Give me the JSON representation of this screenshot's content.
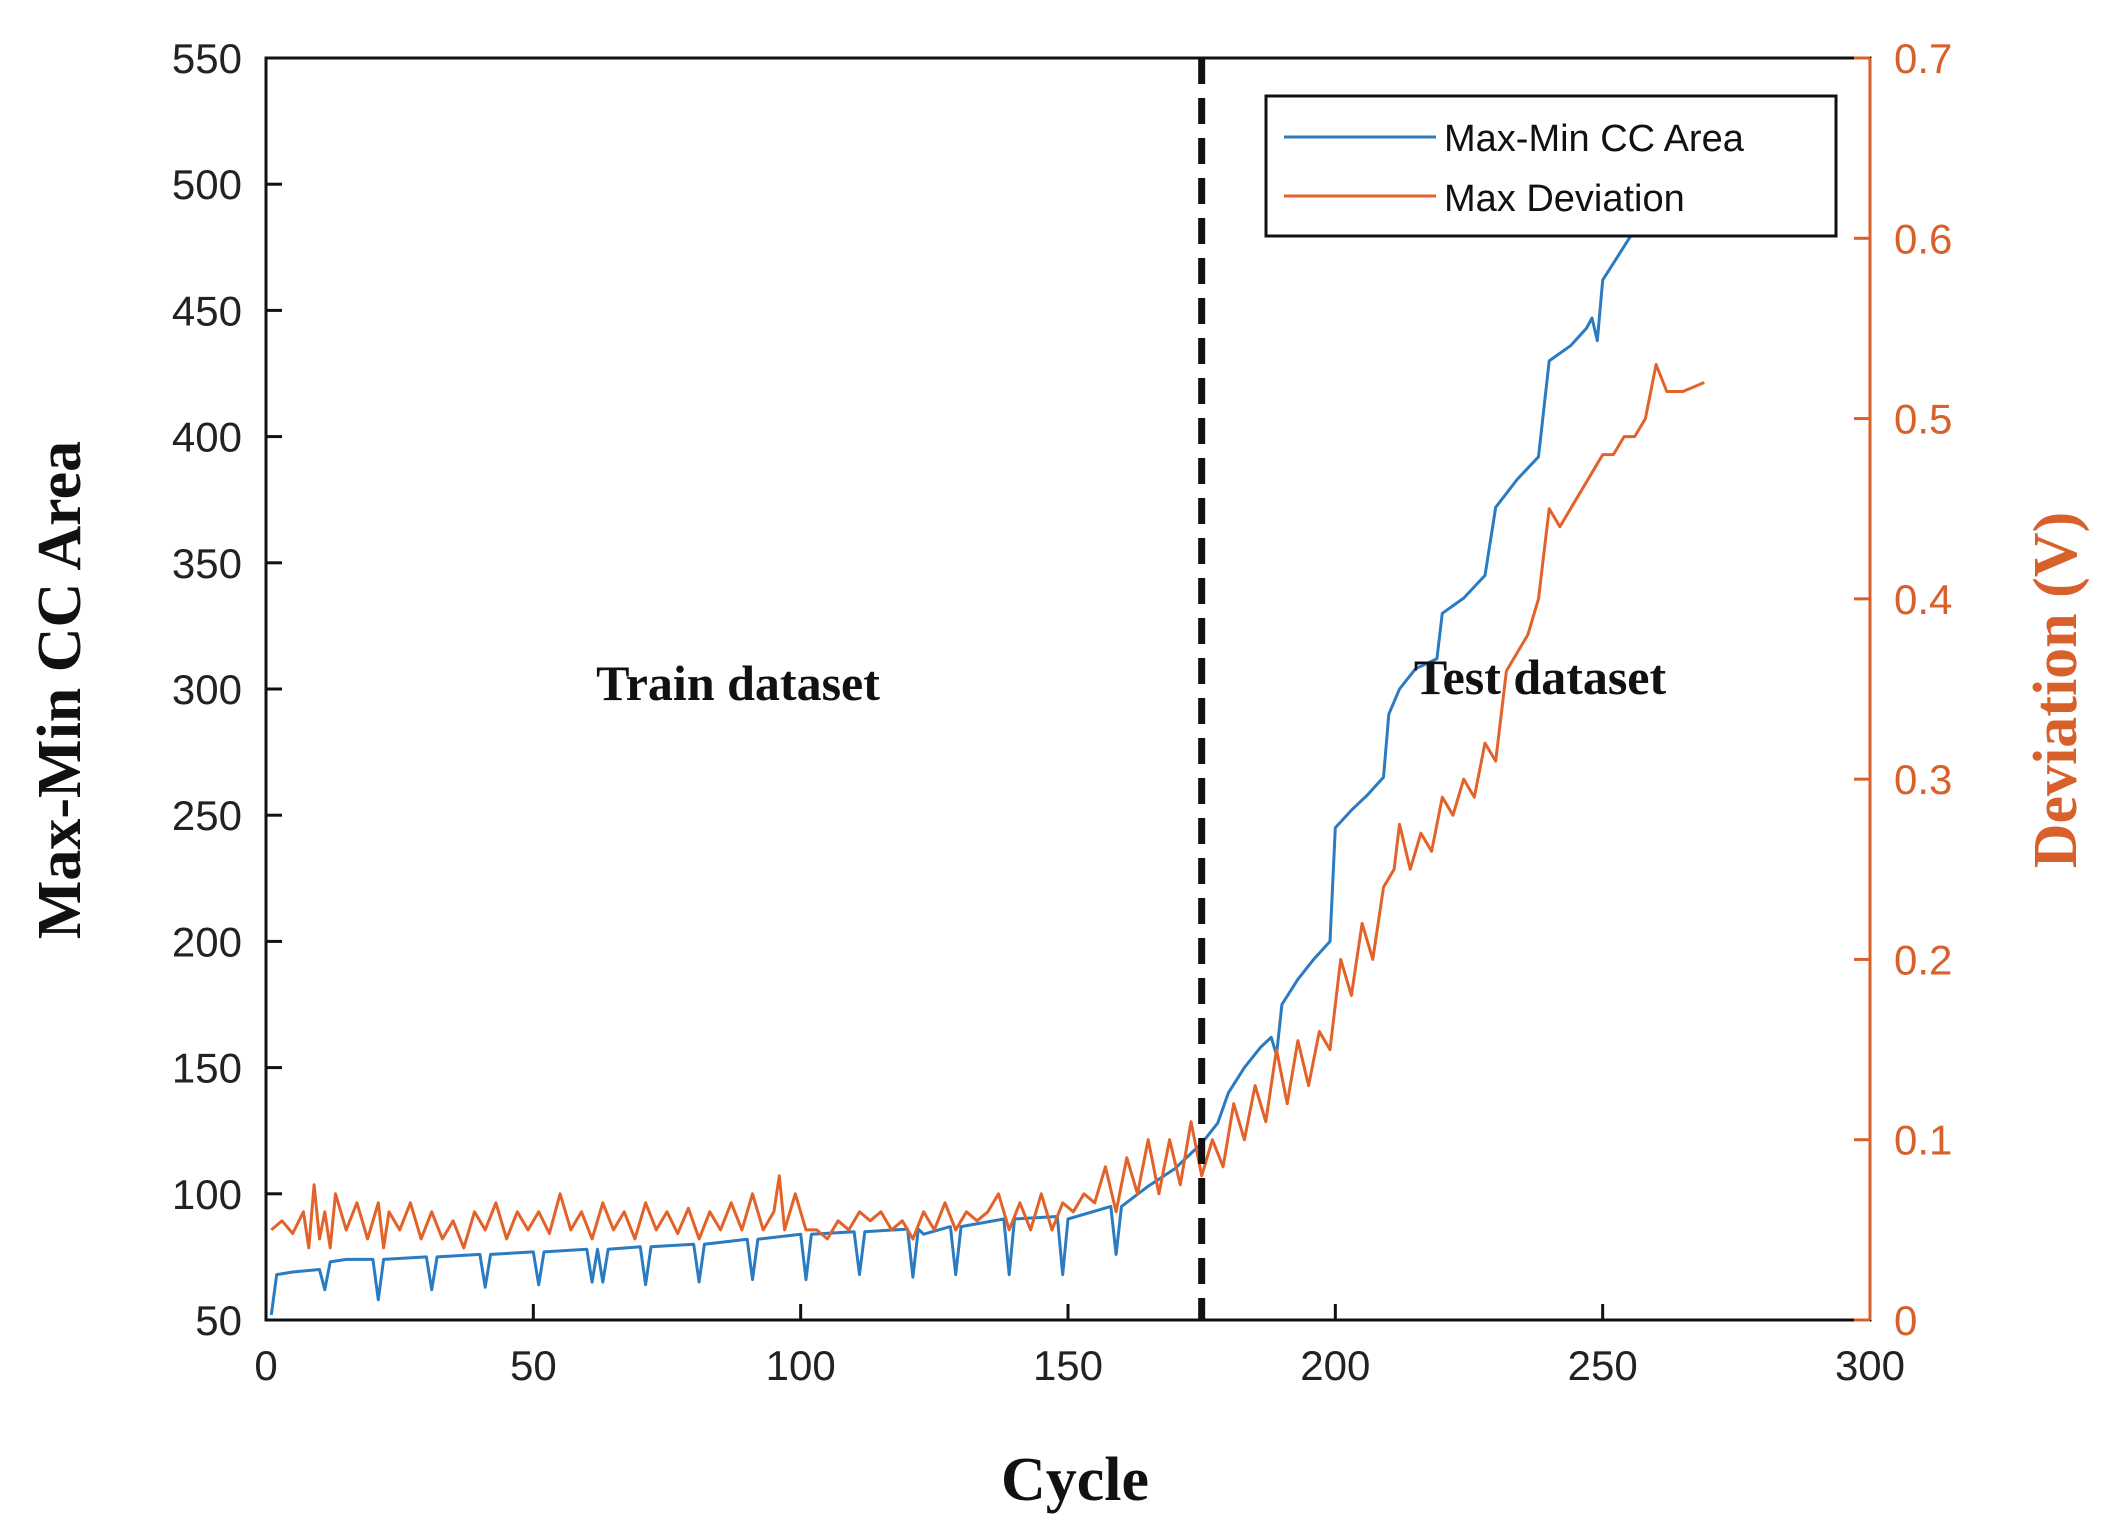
{
  "chart_data": {
    "type": "line",
    "title": "",
    "xlabel": "Cycle",
    "ylabel_left": "Max-Min CC Area",
    "ylabel_right": "Deviation (V)",
    "xlim": [
      0,
      300
    ],
    "ylim_left": [
      50,
      550
    ],
    "ylim_right": [
      0,
      0.7
    ],
    "x_ticks": [
      0,
      50,
      100,
      150,
      200,
      250,
      300
    ],
    "y_left_ticks": [
      50,
      100,
      150,
      200,
      250,
      300,
      350,
      400,
      450,
      500,
      550
    ],
    "y_right_ticks": [
      0,
      0.1,
      0.2,
      0.3,
      0.4,
      0.5,
      0.6,
      0.7
    ],
    "y_right_tick_labels": [
      "0",
      "0.1",
      "0.2",
      "0.3",
      "0.4",
      "0.5",
      "0.6",
      "0.7"
    ],
    "split_line": {
      "x": 175,
      "style": "dashed",
      "color": "#111111"
    },
    "annotations": [
      {
        "text": "Train dataset",
        "x": 88,
        "y": 300,
        "axis": "left"
      },
      {
        "text": "Test dataset",
        "x": 238,
        "y": 303,
        "axis": "left"
      }
    ],
    "legend": {
      "position": "top-right",
      "entries": [
        "Max-Min CC Area",
        "Max Deviation"
      ]
    },
    "series": [
      {
        "name": "Max-Min CC Area",
        "axis": "left",
        "color": "#2a7bc1",
        "points": [
          [
            1,
            52
          ],
          [
            2,
            68
          ],
          [
            5,
            69
          ],
          [
            10,
            70
          ],
          [
            11,
            62
          ],
          [
            12,
            73
          ],
          [
            15,
            74
          ],
          [
            20,
            74
          ],
          [
            21,
            58
          ],
          [
            22,
            74
          ],
          [
            30,
            75
          ],
          [
            31,
            62
          ],
          [
            32,
            75
          ],
          [
            40,
            76
          ],
          [
            41,
            63
          ],
          [
            42,
            76
          ],
          [
            50,
            77
          ],
          [
            51,
            64
          ],
          [
            52,
            77
          ],
          [
            60,
            78
          ],
          [
            61,
            65
          ],
          [
            62,
            78
          ],
          [
            63,
            65
          ],
          [
            64,
            78
          ],
          [
            70,
            79
          ],
          [
            71,
            64
          ],
          [
            72,
            79
          ],
          [
            80,
            80
          ],
          [
            81,
            65
          ],
          [
            82,
            80
          ],
          [
            90,
            82
          ],
          [
            91,
            66
          ],
          [
            92,
            82
          ],
          [
            100,
            84
          ],
          [
            101,
            66
          ],
          [
            102,
            84
          ],
          [
            110,
            85
          ],
          [
            111,
            68
          ],
          [
            112,
            85
          ],
          [
            120,
            86
          ],
          [
            121,
            67
          ],
          [
            122,
            86
          ],
          [
            123,
            84
          ],
          [
            128,
            87
          ],
          [
            129,
            68
          ],
          [
            130,
            87
          ],
          [
            138,
            90
          ],
          [
            139,
            68
          ],
          [
            140,
            90
          ],
          [
            148,
            91
          ],
          [
            149,
            68
          ],
          [
            150,
            90
          ],
          [
            158,
            95
          ],
          [
            159,
            76
          ],
          [
            160,
            95
          ],
          [
            165,
            103
          ],
          [
            170,
            110
          ],
          [
            175,
            120
          ],
          [
            178,
            128
          ],
          [
            180,
            140
          ],
          [
            183,
            150
          ],
          [
            186,
            158
          ],
          [
            188,
            162
          ],
          [
            189,
            155
          ],
          [
            190,
            175
          ],
          [
            193,
            185
          ],
          [
            196,
            193
          ],
          [
            199,
            200
          ],
          [
            200,
            245
          ],
          [
            203,
            252
          ],
          [
            206,
            258
          ],
          [
            209,
            265
          ],
          [
            210,
            290
          ],
          [
            212,
            300
          ],
          [
            215,
            308
          ],
          [
            219,
            312
          ],
          [
            220,
            330
          ],
          [
            224,
            336
          ],
          [
            228,
            345
          ],
          [
            230,
            372
          ],
          [
            234,
            383
          ],
          [
            238,
            392
          ],
          [
            240,
            430
          ],
          [
            244,
            436
          ],
          [
            247,
            443
          ],
          [
            248,
            447
          ],
          [
            249,
            438
          ],
          [
            250,
            462
          ],
          [
            253,
            472
          ],
          [
            256,
            482
          ]
        ]
      },
      {
        "name": "Max Deviation",
        "axis": "right",
        "color": "#e2622a",
        "points": [
          [
            1,
            0.05
          ],
          [
            3,
            0.055
          ],
          [
            5,
            0.048
          ],
          [
            7,
            0.06
          ],
          [
            8,
            0.04
          ],
          [
            9,
            0.075
          ],
          [
            10,
            0.045
          ],
          [
            11,
            0.06
          ],
          [
            12,
            0.04
          ],
          [
            13,
            0.07
          ],
          [
            15,
            0.05
          ],
          [
            17,
            0.065
          ],
          [
            19,
            0.045
          ],
          [
            21,
            0.065
          ],
          [
            22,
            0.04
          ],
          [
            23,
            0.06
          ],
          [
            25,
            0.05
          ],
          [
            27,
            0.065
          ],
          [
            29,
            0.045
          ],
          [
            31,
            0.06
          ],
          [
            33,
            0.045
          ],
          [
            35,
            0.055
          ],
          [
            37,
            0.04
          ],
          [
            39,
            0.06
          ],
          [
            41,
            0.05
          ],
          [
            43,
            0.065
          ],
          [
            45,
            0.045
          ],
          [
            47,
            0.06
          ],
          [
            49,
            0.05
          ],
          [
            51,
            0.06
          ],
          [
            53,
            0.048
          ],
          [
            55,
            0.07
          ],
          [
            57,
            0.05
          ],
          [
            59,
            0.06
          ],
          [
            61,
            0.045
          ],
          [
            63,
            0.065
          ],
          [
            65,
            0.05
          ],
          [
            67,
            0.06
          ],
          [
            69,
            0.045
          ],
          [
            71,
            0.065
          ],
          [
            73,
            0.05
          ],
          [
            75,
            0.06
          ],
          [
            77,
            0.048
          ],
          [
            79,
            0.062
          ],
          [
            81,
            0.045
          ],
          [
            83,
            0.06
          ],
          [
            85,
            0.05
          ],
          [
            87,
            0.065
          ],
          [
            89,
            0.05
          ],
          [
            91,
            0.07
          ],
          [
            93,
            0.05
          ],
          [
            95,
            0.06
          ],
          [
            96,
            0.08
          ],
          [
            97,
            0.05
          ],
          [
            99,
            0.07
          ],
          [
            101,
            0.05
          ],
          [
            103,
            0.05
          ],
          [
            105,
            0.045
          ],
          [
            107,
            0.055
          ],
          [
            109,
            0.05
          ],
          [
            111,
            0.06
          ],
          [
            113,
            0.055
          ],
          [
            115,
            0.06
          ],
          [
            117,
            0.05
          ],
          [
            119,
            0.055
          ],
          [
            121,
            0.045
          ],
          [
            123,
            0.06
          ],
          [
            125,
            0.05
          ],
          [
            127,
            0.065
          ],
          [
            129,
            0.05
          ],
          [
            131,
            0.06
          ],
          [
            133,
            0.055
          ],
          [
            135,
            0.06
          ],
          [
            137,
            0.07
          ],
          [
            139,
            0.05
          ],
          [
            141,
            0.065
          ],
          [
            143,
            0.05
          ],
          [
            145,
            0.07
          ],
          [
            147,
            0.05
          ],
          [
            149,
            0.065
          ],
          [
            151,
            0.06
          ],
          [
            153,
            0.07
          ],
          [
            155,
            0.065
          ],
          [
            157,
            0.085
          ],
          [
            159,
            0.06
          ],
          [
            161,
            0.09
          ],
          [
            163,
            0.07
          ],
          [
            165,
            0.1
          ],
          [
            167,
            0.07
          ],
          [
            169,
            0.1
          ],
          [
            171,
            0.075
          ],
          [
            173,
            0.11
          ],
          [
            175,
            0.08
          ],
          [
            177,
            0.1
          ],
          [
            179,
            0.085
          ],
          [
            181,
            0.12
          ],
          [
            183,
            0.1
          ],
          [
            185,
            0.13
          ],
          [
            187,
            0.11
          ],
          [
            189,
            0.15
          ],
          [
            191,
            0.12
          ],
          [
            193,
            0.155
          ],
          [
            195,
            0.13
          ],
          [
            197,
            0.16
          ],
          [
            199,
            0.15
          ],
          [
            201,
            0.2
          ],
          [
            203,
            0.18
          ],
          [
            205,
            0.22
          ],
          [
            207,
            0.2
          ],
          [
            209,
            0.24
          ],
          [
            211,
            0.25
          ],
          [
            212,
            0.275
          ],
          [
            214,
            0.25
          ],
          [
            216,
            0.27
          ],
          [
            218,
            0.26
          ],
          [
            220,
            0.29
          ],
          [
            222,
            0.28
          ],
          [
            224,
            0.3
          ],
          [
            226,
            0.29
          ],
          [
            228,
            0.32
          ],
          [
            230,
            0.31
          ],
          [
            232,
            0.36
          ],
          [
            234,
            0.37
          ],
          [
            236,
            0.38
          ],
          [
            238,
            0.4
          ],
          [
            240,
            0.45
          ],
          [
            242,
            0.44
          ],
          [
            244,
            0.45
          ],
          [
            246,
            0.46
          ],
          [
            248,
            0.47
          ],
          [
            250,
            0.48
          ],
          [
            252,
            0.48
          ],
          [
            254,
            0.49
          ],
          [
            256,
            0.49
          ],
          [
            258,
            0.5
          ],
          [
            260,
            0.53
          ],
          [
            262,
            0.515
          ],
          [
            265,
            0.515
          ],
          [
            269,
            0.52
          ]
        ]
      }
    ]
  }
}
